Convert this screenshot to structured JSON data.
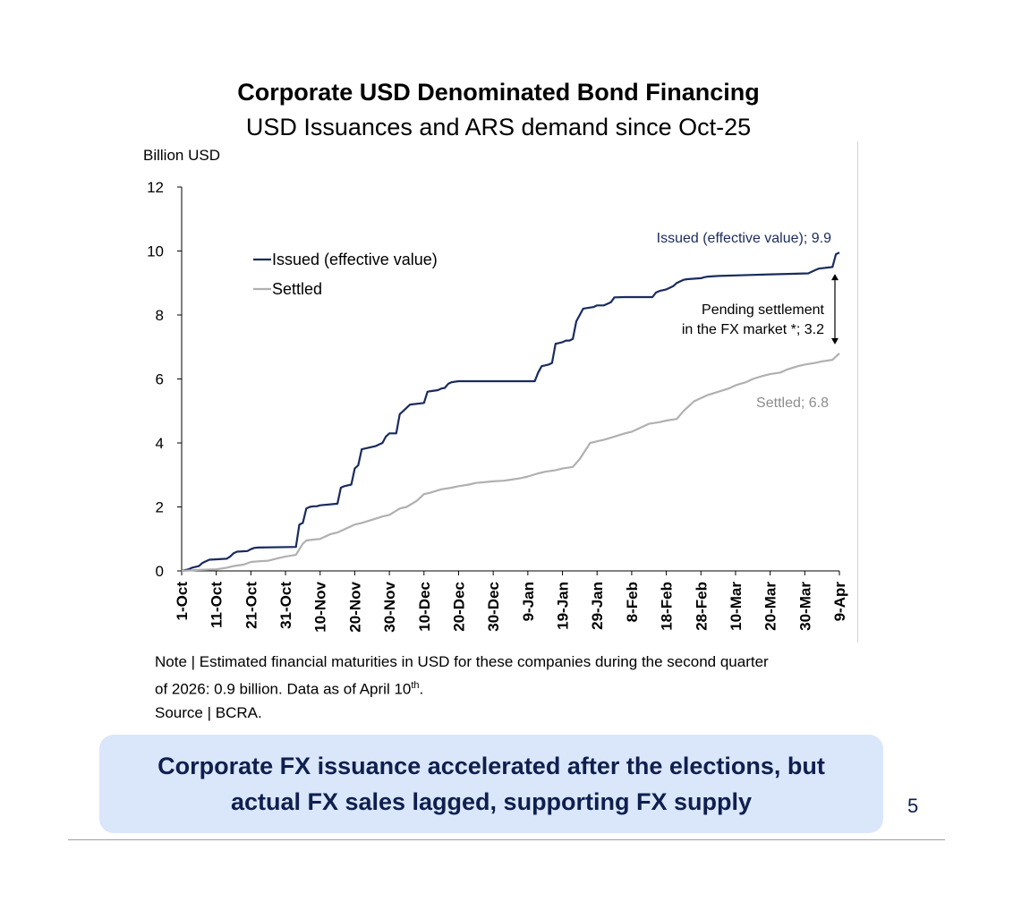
{
  "title": "Corporate USD Denominated Bond Financing",
  "subtitle": "USD Issuances and ARS demand since Oct-25",
  "chart_data": {
    "type": "line",
    "ylabel": "Billion USD",
    "ylim": [
      0,
      12
    ],
    "yticks": [
      "0",
      "2",
      "4",
      "6",
      "8",
      "10",
      "12"
    ],
    "xlim": [
      0,
      190
    ],
    "x_tick_labels": [
      "1-Oct",
      "11-Oct",
      "21-Oct",
      "31-Oct",
      "10-Nov",
      "20-Nov",
      "30-Nov",
      "10-Dec",
      "20-Dec",
      "30-Dec",
      "9-Jan",
      "19-Jan",
      "29-Jan",
      "8-Feb",
      "18-Feb",
      "28-Feb",
      "10-Mar",
      "20-Mar",
      "30-Mar",
      "9-Apr"
    ],
    "x_tick_days": [
      0,
      10,
      20,
      30,
      40,
      50,
      60,
      70,
      80,
      90,
      100,
      110,
      120,
      130,
      140,
      150,
      160,
      170,
      180,
      190
    ],
    "legend": {
      "placement": "upper-left",
      "entries": [
        "Issued (effective value)",
        "Settled"
      ]
    },
    "colors": {
      "issued": "#1a2b5e",
      "settled": "#b0b0b0",
      "arrow": "#000000"
    },
    "series": [
      {
        "name": "Issued (effective value)",
        "x": [
          0,
          2,
          3,
          5,
          6,
          7,
          8,
          13,
          14,
          15,
          16,
          19,
          20,
          21,
          22,
          33,
          34,
          35,
          36,
          37,
          38,
          39,
          40,
          45,
          46,
          47,
          49,
          50,
          51,
          52,
          56,
          57,
          58,
          59,
          60,
          62,
          63,
          64,
          65,
          66,
          70,
          71,
          72,
          74,
          75,
          76,
          77,
          78,
          80,
          102,
          103,
          104,
          106,
          107,
          108,
          110,
          111,
          112,
          113,
          114,
          116,
          119,
          120,
          122,
          124,
          125,
          128,
          136,
          137,
          138,
          140,
          141,
          142,
          143,
          145,
          146,
          150,
          151,
          152,
          155,
          164,
          170,
          181,
          183,
          184,
          188,
          189,
          190
        ],
        "values": [
          0,
          0.05,
          0.1,
          0.15,
          0.25,
          0.3,
          0.35,
          0.38,
          0.45,
          0.55,
          0.6,
          0.62,
          0.68,
          0.72,
          0.73,
          0.75,
          1.45,
          1.5,
          1.95,
          2.0,
          2.02,
          2.02,
          2.05,
          2.1,
          2.6,
          2.65,
          2.7,
          3.2,
          3.3,
          3.8,
          3.9,
          3.95,
          4.0,
          4.2,
          4.3,
          4.3,
          4.9,
          5.0,
          5.1,
          5.2,
          5.25,
          5.6,
          5.62,
          5.65,
          5.7,
          5.72,
          5.85,
          5.9,
          5.93,
          5.93,
          6.2,
          6.4,
          6.45,
          6.5,
          7.1,
          7.15,
          7.2,
          7.2,
          7.25,
          7.8,
          8.2,
          8.25,
          8.3,
          8.3,
          8.4,
          8.55,
          8.56,
          8.56,
          8.7,
          8.75,
          8.8,
          8.85,
          8.9,
          9.0,
          9.1,
          9.12,
          9.15,
          9.18,
          9.2,
          9.22,
          9.25,
          9.27,
          9.3,
          9.4,
          9.45,
          9.5,
          9.9,
          9.95
        ]
      },
      {
        "name": "Settled",
        "x": [
          0,
          5,
          10,
          13,
          15,
          18,
          20,
          22,
          25,
          28,
          30,
          33,
          35,
          36,
          38,
          40,
          43,
          45,
          48,
          50,
          52,
          55,
          58,
          60,
          63,
          65,
          68,
          70,
          72,
          75,
          78,
          80,
          83,
          85,
          88,
          90,
          93,
          95,
          98,
          100,
          103,
          105,
          108,
          110,
          113,
          115,
          118,
          120,
          122,
          125,
          128,
          130,
          133,
          135,
          138,
          140,
          143,
          145,
          148,
          150,
          152,
          155,
          158,
          160,
          163,
          165,
          168,
          170,
          173,
          175,
          178,
          180,
          183,
          185,
          188,
          190
        ],
        "values": [
          0,
          0.03,
          0.05,
          0.1,
          0.15,
          0.2,
          0.28,
          0.3,
          0.32,
          0.4,
          0.45,
          0.5,
          0.85,
          0.95,
          0.98,
          1.0,
          1.15,
          1.2,
          1.35,
          1.45,
          1.5,
          1.6,
          1.7,
          1.75,
          1.95,
          2.0,
          2.2,
          2.4,
          2.45,
          2.55,
          2.6,
          2.65,
          2.7,
          2.75,
          2.78,
          2.8,
          2.82,
          2.85,
          2.9,
          2.95,
          3.05,
          3.1,
          3.15,
          3.2,
          3.25,
          3.5,
          4.0,
          4.05,
          4.1,
          4.2,
          4.3,
          4.35,
          4.5,
          4.6,
          4.65,
          4.7,
          4.75,
          5.0,
          5.3,
          5.4,
          5.5,
          5.6,
          5.7,
          5.8,
          5.9,
          6.0,
          6.1,
          6.15,
          6.2,
          6.3,
          6.4,
          6.45,
          6.5,
          6.55,
          6.6,
          6.8
        ]
      }
    ],
    "annotations": {
      "issued_label": "Issued (effective value); 9.9",
      "settled_label": "Settled; 6.8",
      "pending_line1": "Pending settlement",
      "pending_line2": "in the FX market *; 3.2",
      "pending_top": 9.9,
      "pending_bottom": 6.8
    }
  },
  "note": {
    "line1": "Note | Estimated financial maturities in USD for these companies during the second quarter",
    "line2_pre": "of 2026: 0.9 billion. Data as of April 10",
    "line2_sup": "th",
    "line2_post": ".",
    "source": "Source | BCRA."
  },
  "callout": "Corporate FX issuance accelerated after the elections, but actual FX sales lagged, supporting FX supply",
  "page_number": "5"
}
